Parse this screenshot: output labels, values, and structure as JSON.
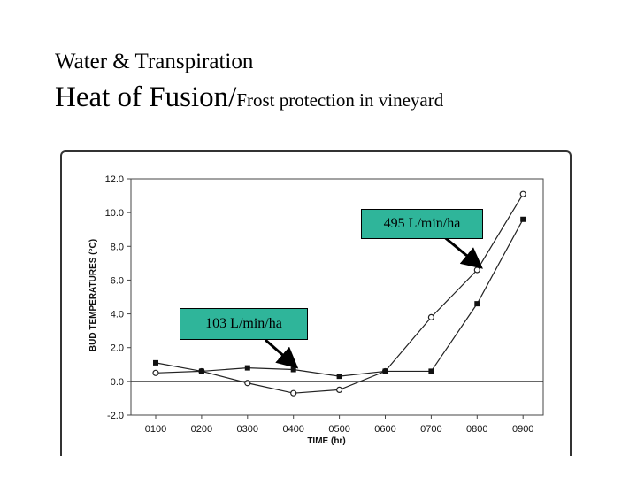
{
  "slide": {
    "title_line1": "Water & Transpiration",
    "title_line2_main": "Heat of Fusion/",
    "title_line2_sub": "Frost protection in vineyard"
  },
  "chart_data": {
    "type": "line",
    "categories": [
      "0100",
      "0200",
      "0300",
      "0400",
      "0500",
      "0600",
      "0700",
      "0800",
      "0900"
    ],
    "xlabel": "TIME (hr)",
    "ylabel": "BUD TEMPERATURES (°C)",
    "ylim": [
      -2.0,
      12.0
    ],
    "yticks": [
      "12.0",
      "10.0",
      "8.0",
      "6.0",
      "4.0",
      "2.0",
      "0.0",
      "-2.0"
    ],
    "grid": false,
    "series": [
      {
        "marker": "circle",
        "values": [
          0.5,
          0.6,
          -0.1,
          -0.7,
          -0.5,
          0.6,
          3.8,
          6.6,
          11.1
        ]
      },
      {
        "marker": "square",
        "values": [
          1.1,
          0.6,
          0.8,
          0.7,
          0.3,
          0.6,
          0.6,
          4.6,
          9.6
        ]
      }
    ],
    "annotations": [
      {
        "text": "495 L/min/ha",
        "points_to": {
          "x": "0800",
          "y": 6.6
        }
      },
      {
        "text": "103 L/min/ha",
        "points_to": {
          "x": "0400",
          "y": 0.7
        }
      }
    ],
    "colors": {
      "annotation_box": "#2fb59a",
      "line": "#222222"
    }
  }
}
